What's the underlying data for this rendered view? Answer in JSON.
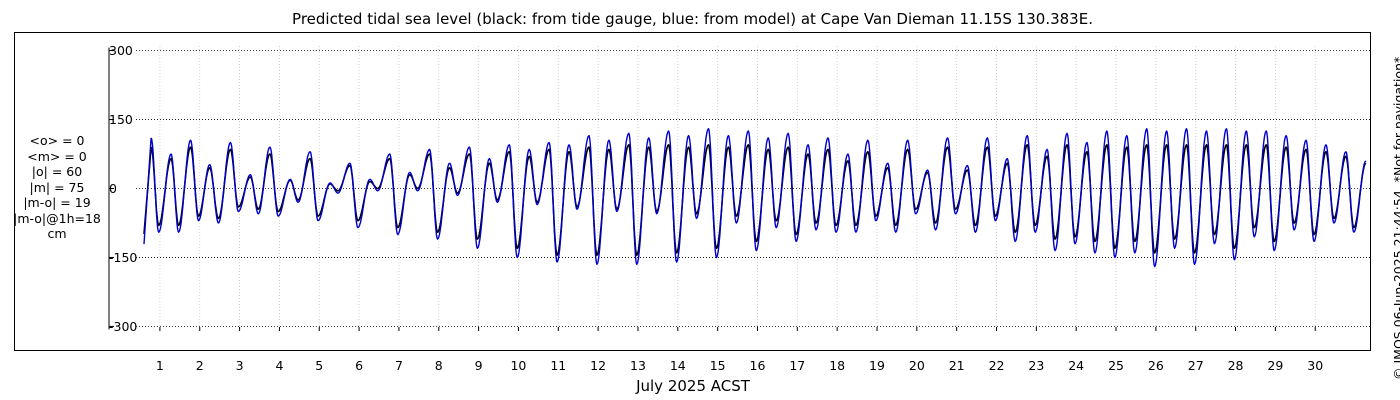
{
  "chart_data": {
    "type": "line",
    "title": "Predicted tidal sea level (black: from tide gauge, blue: from model) at Cape Van Dieman 11.15S 130.383E.",
    "xlabel": "July 2025 ACST",
    "ylabel": "",
    "x_unit": "day of July 2025",
    "xlim": [
      0.4,
      31.4
    ],
    "ylim": [
      -310,
      310
    ],
    "y_ticks": [
      300,
      150,
      0,
      -150,
      -300
    ],
    "y_tick_labels": [
      "300",
      "150",
      "0",
      "-150",
      "-300"
    ],
    "x_ticks": [
      1,
      2,
      3,
      4,
      5,
      6,
      7,
      8,
      9,
      10,
      11,
      12,
      13,
      14,
      15,
      16,
      17,
      18,
      19,
      20,
      21,
      22,
      23,
      24,
      25,
      26,
      27,
      28,
      29,
      30
    ],
    "x_tick_labels": [
      "1",
      "2",
      "3",
      "4",
      "5",
      "6",
      "7",
      "8",
      "9",
      "10",
      "11",
      "12",
      "13",
      "14",
      "15",
      "16",
      "17",
      "18",
      "19",
      "20",
      "21",
      "22",
      "23",
      "24",
      "25",
      "26",
      "27",
      "28",
      "29",
      "30"
    ],
    "grid": true,
    "series": [
      {
        "name": "from tide gauge",
        "color": "#000000",
        "tides": [
          {
            "x": 0.78,
            "y": 90
          },
          {
            "x": 0.97,
            "y": -80
          },
          {
            "x": 1.28,
            "y": 65
          },
          {
            "x": 1.47,
            "y": -80
          },
          {
            "x": 1.77,
            "y": 90
          },
          {
            "x": 1.97,
            "y": -60
          },
          {
            "x": 2.25,
            "y": 45
          },
          {
            "x": 2.47,
            "y": -65
          },
          {
            "x": 2.77,
            "y": 85
          },
          {
            "x": 2.97,
            "y": -40
          },
          {
            "x": 3.27,
            "y": 25
          },
          {
            "x": 3.47,
            "y": -45
          },
          {
            "x": 3.76,
            "y": 75
          },
          {
            "x": 3.97,
            "y": -50
          },
          {
            "x": 4.27,
            "y": 18
          },
          {
            "x": 4.47,
            "y": -25
          },
          {
            "x": 4.77,
            "y": 65
          },
          {
            "x": 4.97,
            "y": -60
          },
          {
            "x": 5.27,
            "y": 10
          },
          {
            "x": 5.47,
            "y": -5
          },
          {
            "x": 5.77,
            "y": 50
          },
          {
            "x": 5.97,
            "y": -70
          },
          {
            "x": 6.27,
            "y": 15
          },
          {
            "x": 6.47,
            "y": 0
          },
          {
            "x": 6.77,
            "y": 65
          },
          {
            "x": 6.97,
            "y": -85
          },
          {
            "x": 7.27,
            "y": 30
          },
          {
            "x": 7.47,
            "y": 0
          },
          {
            "x": 7.77,
            "y": 75
          },
          {
            "x": 7.97,
            "y": -95
          },
          {
            "x": 8.27,
            "y": 45
          },
          {
            "x": 8.47,
            "y": -10
          },
          {
            "x": 8.77,
            "y": 75
          },
          {
            "x": 8.97,
            "y": -110
          },
          {
            "x": 9.27,
            "y": 55
          },
          {
            "x": 9.47,
            "y": -25
          },
          {
            "x": 9.77,
            "y": 80
          },
          {
            "x": 9.97,
            "y": -130
          },
          {
            "x": 10.27,
            "y": 70
          },
          {
            "x": 10.47,
            "y": -30
          },
          {
            "x": 10.77,
            "y": 85
          },
          {
            "x": 10.97,
            "y": -145
          },
          {
            "x": 11.27,
            "y": 80
          },
          {
            "x": 11.47,
            "y": -40
          },
          {
            "x": 11.77,
            "y": 90
          },
          {
            "x": 11.97,
            "y": -145
          },
          {
            "x": 12.27,
            "y": 85
          },
          {
            "x": 12.47,
            "y": -45
          },
          {
            "x": 12.77,
            "y": 95
          },
          {
            "x": 12.97,
            "y": -145
          },
          {
            "x": 13.27,
            "y": 90
          },
          {
            "x": 13.47,
            "y": -50
          },
          {
            "x": 13.77,
            "y": 95
          },
          {
            "x": 13.97,
            "y": -140
          },
          {
            "x": 14.27,
            "y": 90
          },
          {
            "x": 14.47,
            "y": -55
          },
          {
            "x": 14.77,
            "y": 95
          },
          {
            "x": 14.97,
            "y": -130
          },
          {
            "x": 15.27,
            "y": 90
          },
          {
            "x": 15.47,
            "y": -60
          },
          {
            "x": 15.77,
            "y": 95
          },
          {
            "x": 15.97,
            "y": -115
          },
          {
            "x": 16.27,
            "y": 85
          },
          {
            "x": 16.47,
            "y": -70
          },
          {
            "x": 16.77,
            "y": 90
          },
          {
            "x": 16.97,
            "y": -100
          },
          {
            "x": 17.27,
            "y": 75
          },
          {
            "x": 17.47,
            "y": -75
          },
          {
            "x": 17.77,
            "y": 85
          },
          {
            "x": 17.97,
            "y": -80
          },
          {
            "x": 18.27,
            "y": 60
          },
          {
            "x": 18.47,
            "y": -80
          },
          {
            "x": 18.77,
            "y": 80
          },
          {
            "x": 18.97,
            "y": -60
          },
          {
            "x": 19.27,
            "y": 45
          },
          {
            "x": 19.47,
            "y": -80
          },
          {
            "x": 19.77,
            "y": 85
          },
          {
            "x": 19.97,
            "y": -45
          },
          {
            "x": 20.27,
            "y": 35
          },
          {
            "x": 20.47,
            "y": -75
          },
          {
            "x": 20.77,
            "y": 90
          },
          {
            "x": 20.97,
            "y": -45
          },
          {
            "x": 21.27,
            "y": 40
          },
          {
            "x": 21.47,
            "y": -80
          },
          {
            "x": 21.77,
            "y": 90
          },
          {
            "x": 21.97,
            "y": -60
          },
          {
            "x": 22.27,
            "y": 55
          },
          {
            "x": 22.47,
            "y": -95
          },
          {
            "x": 22.77,
            "y": 95
          },
          {
            "x": 22.97,
            "y": -80
          },
          {
            "x": 23.27,
            "y": 70
          },
          {
            "x": 23.47,
            "y": -110
          },
          {
            "x": 23.77,
            "y": 95
          },
          {
            "x": 23.97,
            "y": -105
          },
          {
            "x": 24.27,
            "y": 80
          },
          {
            "x": 24.47,
            "y": -115
          },
          {
            "x": 24.77,
            "y": 95
          },
          {
            "x": 24.97,
            "y": -130
          },
          {
            "x": 25.27,
            "y": 90
          },
          {
            "x": 25.47,
            "y": -115
          },
          {
            "x": 25.77,
            "y": 95
          },
          {
            "x": 25.97,
            "y": -140
          },
          {
            "x": 26.27,
            "y": 95
          },
          {
            "x": 26.47,
            "y": -110
          },
          {
            "x": 26.77,
            "y": 95
          },
          {
            "x": 26.97,
            "y": -140
          },
          {
            "x": 27.27,
            "y": 95
          },
          {
            "x": 27.47,
            "y": -100
          },
          {
            "x": 27.77,
            "y": 95
          },
          {
            "x": 27.97,
            "y": -130
          },
          {
            "x": 28.27,
            "y": 95
          },
          {
            "x": 28.47,
            "y": -85
          },
          {
            "x": 28.77,
            "y": 95
          },
          {
            "x": 28.97,
            "y": -115
          },
          {
            "x": 29.27,
            "y": 90
          },
          {
            "x": 29.47,
            "y": -75
          },
          {
            "x": 29.77,
            "y": 85
          },
          {
            "x": 29.97,
            "y": -100
          },
          {
            "x": 30.27,
            "y": 80
          },
          {
            "x": 30.47,
            "y": -65
          },
          {
            "x": 30.77,
            "y": 70
          },
          {
            "x": 30.97,
            "y": -85
          },
          {
            "x": 31.27,
            "y": 55
          }
        ]
      },
      {
        "name": "from model",
        "color": "#0000cc",
        "tides": [
          {
            "x": 0.78,
            "y": 110
          },
          {
            "x": 0.97,
            "y": -95
          },
          {
            "x": 1.28,
            "y": 75
          },
          {
            "x": 1.47,
            "y": -95
          },
          {
            "x": 1.77,
            "y": 105
          },
          {
            "x": 1.97,
            "y": -70
          },
          {
            "x": 2.25,
            "y": 52
          },
          {
            "x": 2.47,
            "y": -75
          },
          {
            "x": 2.77,
            "y": 100
          },
          {
            "x": 2.97,
            "y": -50
          },
          {
            "x": 3.27,
            "y": 30
          },
          {
            "x": 3.47,
            "y": -55
          },
          {
            "x": 3.76,
            "y": 90
          },
          {
            "x": 3.97,
            "y": -60
          },
          {
            "x": 4.27,
            "y": 20
          },
          {
            "x": 4.47,
            "y": -30
          },
          {
            "x": 4.77,
            "y": 80
          },
          {
            "x": 4.97,
            "y": -70
          },
          {
            "x": 5.27,
            "y": 12
          },
          {
            "x": 5.47,
            "y": -10
          },
          {
            "x": 5.77,
            "y": 55
          },
          {
            "x": 5.97,
            "y": -85
          },
          {
            "x": 6.27,
            "y": 20
          },
          {
            "x": 6.47,
            "y": -5
          },
          {
            "x": 6.77,
            "y": 75
          },
          {
            "x": 6.97,
            "y": -100
          },
          {
            "x": 7.27,
            "y": 35
          },
          {
            "x": 7.47,
            "y": -5
          },
          {
            "x": 7.77,
            "y": 85
          },
          {
            "x": 7.97,
            "y": -110
          },
          {
            "x": 8.27,
            "y": 55
          },
          {
            "x": 8.47,
            "y": -15
          },
          {
            "x": 8.77,
            "y": 90
          },
          {
            "x": 8.97,
            "y": -130
          },
          {
            "x": 9.27,
            "y": 65
          },
          {
            "x": 9.47,
            "y": -30
          },
          {
            "x": 9.77,
            "y": 95
          },
          {
            "x": 9.97,
            "y": -150
          },
          {
            "x": 10.27,
            "y": 85
          },
          {
            "x": 10.47,
            "y": -35
          },
          {
            "x": 10.77,
            "y": 100
          },
          {
            "x": 10.97,
            "y": -160
          },
          {
            "x": 11.27,
            "y": 95
          },
          {
            "x": 11.47,
            "y": -45
          },
          {
            "x": 11.77,
            "y": 115
          },
          {
            "x": 11.97,
            "y": -165
          },
          {
            "x": 12.27,
            "y": 105
          },
          {
            "x": 12.47,
            "y": -50
          },
          {
            "x": 12.77,
            "y": 120
          },
          {
            "x": 12.97,
            "y": -165
          },
          {
            "x": 13.27,
            "y": 110
          },
          {
            "x": 13.47,
            "y": -55
          },
          {
            "x": 13.77,
            "y": 125
          },
          {
            "x": 13.97,
            "y": -160
          },
          {
            "x": 14.27,
            "y": 115
          },
          {
            "x": 14.47,
            "y": -65
          },
          {
            "x": 14.77,
            "y": 130
          },
          {
            "x": 14.97,
            "y": -150
          },
          {
            "x": 15.27,
            "y": 115
          },
          {
            "x": 15.47,
            "y": -75
          },
          {
            "x": 15.77,
            "y": 125
          },
          {
            "x": 15.97,
            "y": -135
          },
          {
            "x": 16.27,
            "y": 110
          },
          {
            "x": 16.47,
            "y": -85
          },
          {
            "x": 16.77,
            "y": 120
          },
          {
            "x": 16.97,
            "y": -115
          },
          {
            "x": 17.27,
            "y": 95
          },
          {
            "x": 17.47,
            "y": -90
          },
          {
            "x": 17.77,
            "y": 110
          },
          {
            "x": 17.97,
            "y": -95
          },
          {
            "x": 18.27,
            "y": 75
          },
          {
            "x": 18.47,
            "y": -95
          },
          {
            "x": 18.77,
            "y": 105
          },
          {
            "x": 18.97,
            "y": -70
          },
          {
            "x": 19.27,
            "y": 55
          },
          {
            "x": 19.47,
            "y": -95
          },
          {
            "x": 19.77,
            "y": 105
          },
          {
            "x": 19.97,
            "y": -55
          },
          {
            "x": 20.27,
            "y": 40
          },
          {
            "x": 20.47,
            "y": -90
          },
          {
            "x": 20.77,
            "y": 110
          },
          {
            "x": 20.97,
            "y": -55
          },
          {
            "x": 21.27,
            "y": 50
          },
          {
            "x": 21.47,
            "y": -95
          },
          {
            "x": 21.77,
            "y": 110
          },
          {
            "x": 21.97,
            "y": -70
          },
          {
            "x": 22.27,
            "y": 65
          },
          {
            "x": 22.47,
            "y": -115
          },
          {
            "x": 22.77,
            "y": 115
          },
          {
            "x": 22.97,
            "y": -95
          },
          {
            "x": 23.27,
            "y": 85
          },
          {
            "x": 23.47,
            "y": -135
          },
          {
            "x": 23.77,
            "y": 120
          },
          {
            "x": 23.97,
            "y": -120
          },
          {
            "x": 24.27,
            "y": 100
          },
          {
            "x": 24.47,
            "y": -140
          },
          {
            "x": 24.77,
            "y": 125
          },
          {
            "x": 24.97,
            "y": -150
          },
          {
            "x": 25.27,
            "y": 115
          },
          {
            "x": 25.47,
            "y": -140
          },
          {
            "x": 25.77,
            "y": 130
          },
          {
            "x": 25.97,
            "y": -170
          },
          {
            "x": 26.27,
            "y": 125
          },
          {
            "x": 26.47,
            "y": -130
          },
          {
            "x": 26.77,
            "y": 130
          },
          {
            "x": 26.97,
            "y": -165
          },
          {
            "x": 27.27,
            "y": 125
          },
          {
            "x": 27.47,
            "y": -120
          },
          {
            "x": 27.77,
            "y": 130
          },
          {
            "x": 27.97,
            "y": -155
          },
          {
            "x": 28.27,
            "y": 125
          },
          {
            "x": 28.47,
            "y": -105
          },
          {
            "x": 28.77,
            "y": 125
          },
          {
            "x": 28.97,
            "y": -135
          },
          {
            "x": 29.27,
            "y": 115
          },
          {
            "x": 29.47,
            "y": -90
          },
          {
            "x": 29.77,
            "y": 105
          },
          {
            "x": 29.97,
            "y": -115
          },
          {
            "x": 30.27,
            "y": 95
          },
          {
            "x": 30.47,
            "y": -75
          },
          {
            "x": 30.77,
            "y": 80
          },
          {
            "x": 30.97,
            "y": -95
          },
          {
            "x": 31.27,
            "y": 60
          }
        ]
      }
    ]
  },
  "stats": {
    "mean_obs": "<o> = 0",
    "mean_model": "<m> = 0",
    "abs_obs": "|o| = 60",
    "abs_model": "|m| = 75",
    "abs_diff": "|m-o| = 19",
    "abs_diff_1h": "|m-o|@1h=18",
    "unit": "cm"
  },
  "copyright": "© IMOS 06-Jun-2025 21:44:54. *Not for navigation*"
}
